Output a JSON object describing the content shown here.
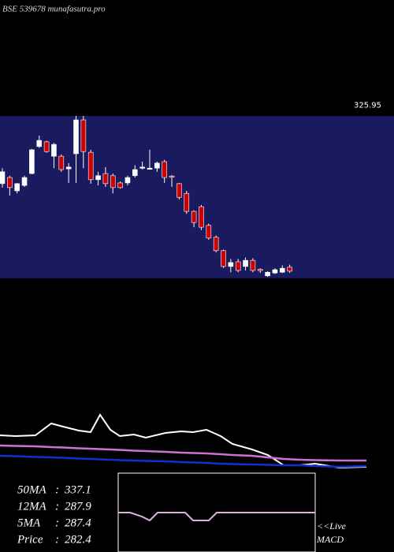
{
  "header": {
    "title": "BSE 539678 munafasutra.pro"
  },
  "chart_data": [
    {
      "type": "candlestick",
      "price_labels": [
        325.95
      ],
      "ylim": [
        279.6,
        324.7
      ],
      "open": [
        305.9,
        307.6,
        303.9,
        305.4,
        308.7,
        316.2,
        317.5,
        313.5,
        313.5,
        310.0,
        314.2,
        323.6,
        314.6,
        307.0,
        308.7,
        308.1,
        306.1,
        306.1,
        308.1,
        310.3,
        310.1,
        310.2,
        312.0,
        308.0,
        305.9,
        303.2,
        298.2,
        299.5,
        294.3,
        291.0,
        287.3,
        282.9,
        284.2,
        282.9,
        284.6,
        282.1,
        280.3,
        281.1,
        281.3,
        282.7
      ],
      "high": [
        310.2,
        308.1,
        306.1,
        308.1,
        315.5,
        319.2,
        317.8,
        317.2,
        314.0,
        311.6,
        324.7,
        324.7,
        315.3,
        309.2,
        310.5,
        308.7,
        306.5,
        308.1,
        311.0,
        312.0,
        315.3,
        312.0,
        312.5,
        308.3,
        306.1,
        303.9,
        298.5,
        300.0,
        294.8,
        291.5,
        287.6,
        285.0,
        285.0,
        285.4,
        285.2,
        282.4,
        281.6,
        282.4,
        283.2,
        283.4
      ],
      "low": [
        304.8,
        302.6,
        303.2,
        305.0,
        308.5,
        315.8,
        314.5,
        310.2,
        309.2,
        306.1,
        306.1,
        310.2,
        305.9,
        305.4,
        305.0,
        303.2,
        304.5,
        305.4,
        307.6,
        309.8,
        309.8,
        309.2,
        306.1,
        305.0,
        301.5,
        297.5,
        293.8,
        293.0,
        290.3,
        286.8,
        282.5,
        281.3,
        281.3,
        281.8,
        281.3,
        281.1,
        280.0,
        280.8,
        281.1,
        281.1
      ],
      "close": [
        309.2,
        304.8,
        305.9,
        307.6,
        315.3,
        317.9,
        314.8,
        316.8,
        309.8,
        310.5,
        323.6,
        314.8,
        307.0,
        308.1,
        305.9,
        304.8,
        304.8,
        307.6,
        309.8,
        310.5,
        310.2,
        311.6,
        307.6,
        307.8,
        302.1,
        298.2,
        295.1,
        293.8,
        290.8,
        287.3,
        282.9,
        284.0,
        281.8,
        284.6,
        281.8,
        282.0,
        281.3,
        282.0,
        282.4,
        281.6
      ],
      "up_color": "#ffffff",
      "down_color": "#cc0000",
      "panel_color": "#1a1a5e"
    },
    {
      "type": "line",
      "xlim": [
        0,
        500
      ],
      "ylim": [
        0,
        80
      ],
      "x": [
        0,
        20,
        45,
        65,
        80,
        100,
        115,
        127,
        140,
        152,
        170,
        185,
        210,
        230,
        245,
        262,
        280,
        295,
        320,
        340,
        360,
        380,
        400,
        430,
        465
      ],
      "series": [
        {
          "color": "#ffffff",
          "values": [
            48,
            47,
            48,
            63,
            59,
            54,
            52,
            74,
            55,
            47,
            49,
            45,
            51,
            53,
            52,
            55,
            47,
            37,
            30,
            23,
            10,
            10,
            12,
            7,
            8
          ]
        },
        {
          "color": "#d070d0",
          "values": [
            35,
            34.5,
            34,
            33,
            32.5,
            31.5,
            31,
            30.5,
            30,
            29.5,
            28.5,
            28,
            27,
            26,
            25.5,
            25,
            24,
            23,
            22,
            20,
            18,
            17,
            16.5,
            16,
            16
          ]
        },
        {
          "color": "#1030d0",
          "values": [
            22,
            21.5,
            20.5,
            20,
            19.5,
            18.5,
            18,
            17.5,
            17,
            16.5,
            16,
            15.5,
            15,
            14,
            13.5,
            13,
            12,
            11.5,
            11,
            10.5,
            10,
            10,
            9,
            8,
            9
          ]
        }
      ],
      "stats": [
        {
          "label": "50MA",
          "value": 337.1
        },
        {
          "label": "12MA",
          "value": 287.9
        },
        {
          "label": "5MA",
          "value": 287.4
        },
        {
          "label": "Price",
          "value": 282.4
        }
      ]
    },
    {
      "type": "macd",
      "xlim": [
        150,
        400
      ],
      "ylim": [
        -10,
        10
      ],
      "x": [
        150,
        165,
        180,
        190,
        200,
        235,
        245,
        255,
        265,
        275,
        385,
        400
      ],
      "series": [
        {
          "color": "#e0b0e0",
          "values": [
            0,
            0,
            -1,
            -2,
            0,
            0,
            -2,
            -2,
            -2,
            0,
            0,
            0
          ]
        }
      ],
      "live": "<<Live",
      "label": "MACD"
    }
  ]
}
